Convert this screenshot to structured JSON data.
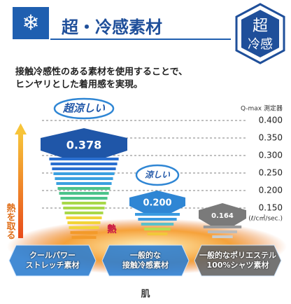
{
  "header": {
    "title": "超・冷感素材",
    "badge": [
      "超",
      "冷感"
    ],
    "description": [
      "接触冷感性のある素材を使用することで、",
      "ヒンヤリとした着用感を実現。"
    ]
  },
  "chart_data": {
    "type": "bar",
    "axis_title": "Q-max 測定器",
    "unit": "(ℓ/c㎡/sec.)",
    "categories": [
      "クールパワー\nストレッチ素材",
      "一般的な\n接触冷感素材",
      "一般的なポリエステル\n100%シャツ素材"
    ],
    "values": [
      0.378,
      0.2,
      0.164
    ],
    "value_labels": [
      "0.378",
      "0.200",
      "0.164"
    ],
    "colors": [
      "#1f56a8",
      "#2f86d4",
      "#7a7a7a"
    ],
    "bubbles": [
      "超涼しい",
      "涼しい",
      null
    ],
    "ylim": [
      0.15,
      0.4
    ],
    "yticks": [
      {
        "value": 0.15,
        "label": "0.150"
      },
      {
        "value": 0.2,
        "label": "0.200"
      },
      {
        "value": 0.25,
        "label": "0.250"
      },
      {
        "value": 0.3,
        "label": "0.300"
      },
      {
        "value": 0.35,
        "label": "0.350"
      },
      {
        "value": 0.4,
        "label": "0.400"
      }
    ],
    "grid": true,
    "annotations": {
      "arrow": "熱を取る",
      "heat": "熱",
      "skin": "肌"
    }
  }
}
